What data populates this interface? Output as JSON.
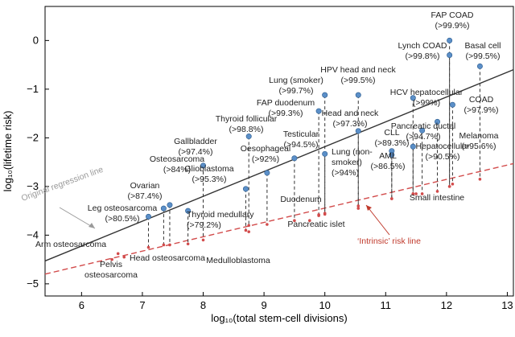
{
  "chart_data": {
    "type": "scatter",
    "title": "",
    "xlabel": "log₁₀(total stem-cell divisions)",
    "ylabel": "log₁₀(lifetime risk)",
    "xlim": [
      5.4,
      13.1
    ],
    "ylim": [
      -5.25,
      0.7
    ],
    "xticks": [
      6,
      7,
      8,
      9,
      10,
      11,
      12,
      13
    ],
    "yticks": [
      0,
      -1,
      -2,
      -3,
      -4,
      -5
    ],
    "grid": false,
    "colors": {
      "high_point": "#5b8fc8",
      "low_point": "#d24b4b",
      "regression_line": "#333333",
      "intrinsic_line": "#d24b4b",
      "original_label": "#9a9a9a",
      "intrinsic_label": "#c0392b",
      "drop_line": "#333333"
    },
    "lines": [
      {
        "name": "regression",
        "style": "solid",
        "x": [
          5.4,
          13.1
        ],
        "y": [
          -4.53,
          -0.6
        ]
      },
      {
        "name": "intrinsic",
        "style": "dashed",
        "x": [
          5.4,
          13.1
        ],
        "y": [
          -4.8,
          -2.53
        ]
      }
    ],
    "points": [
      {
        "label": "FAP COAD\n(>99.9%)",
        "x": 12.05,
        "y_high": 0.0,
        "y_low": -3.0
      },
      {
        "label": "Lynch COAD\n(>99.8%)",
        "x": 12.05,
        "y_high": -0.3,
        "y_low": -3.0
      },
      {
        "label": "Basal cell\n(>99.5%)",
        "x": 12.55,
        "y_high": -0.53,
        "y_low": -2.85
      },
      {
        "label": "HPV head and neck\n(>99.5%)",
        "x": 10.55,
        "y_high": -1.12,
        "y_low": -3.4
      },
      {
        "label": "Lung (smoker)\n(>99.7%)",
        "x": 10.0,
        "y_high": -1.12,
        "y_low": -3.57
      },
      {
        "label": "HCV hepatocellular\n(>99%)",
        "x": 11.45,
        "y_high": -1.18,
        "y_low": -3.15
      },
      {
        "label": "COAD\n(>97.9%)",
        "x": 12.1,
        "y_high": -1.32,
        "y_low": -2.95
      },
      {
        "label": "FAP duodenum\n(>99.3%)",
        "x": 9.9,
        "y_high": -1.45,
        "y_low": -3.6
      },
      {
        "label": "Head and neck\n(>97.3%)",
        "x": 10.55,
        "y_high": -1.86,
        "y_low": -3.45
      },
      {
        "label": "Thyroid follicular\n(>98.8%)",
        "x": 8.75,
        "y_high": -1.97,
        "y_low": -3.8
      },
      {
        "label": "Pancreatic ductal\n(>94.7%)",
        "x": 11.6,
        "y_high": -1.85,
        "y_low": -3.15
      },
      {
        "label": "Melanoma\n(>95.6%)",
        "x": 11.85,
        "y_high": -1.67,
        "y_low": -3.1
      },
      {
        "label": "Hepatocellular\n(>90.5%)",
        "x": 11.45,
        "y_high": -2.18,
        "y_low": -3.15
      },
      {
        "label": "Testicular\n(>94.5%)",
        "x": 9.5,
        "y_high": -2.42,
        "y_low": -3.7
      },
      {
        "label": "Lung (non-\nsmoker)\n(>94%)",
        "x": 10.0,
        "y_high": -2.33,
        "y_low": -3.55
      },
      {
        "label": "Oesophageal\n(>92%)",
        "x": 9.05,
        "y_high": -2.72,
        "y_low": -3.78
      },
      {
        "label": "Gallbladder\n(>97.4%)",
        "x": 8.0,
        "y_high": -2.57,
        "y_low": -4.1
      },
      {
        "label": "CLL\n(>89.3%)",
        "x": 11.1,
        "y_high": -2.27,
        "y_low": -3.25
      },
      {
        "label": "AML\n(>86.5%)",
        "x": 11.1,
        "y_high": -2.35,
        "y_low": -3.25
      },
      {
        "label": "Glioblastoma\n(>95.3%)",
        "x": 8.7,
        "y_high": -3.05,
        "y_low": -3.9
      },
      {
        "label": "Osteosarcoma\n(>84%)",
        "x": 7.45,
        "y_high": -3.38,
        "y_low": -4.2
      },
      {
        "label": "Ovarian\n(>87.4%)",
        "x": 7.35,
        "y_high": -3.45,
        "y_low": -4.2
      },
      {
        "label": "Leg osteosarcoma\n(>80.5%)",
        "x": 7.1,
        "y_high": -3.62,
        "y_low": -4.25
      },
      {
        "label": "Thyroid medullary\n(>79.2%)",
        "x": 7.75,
        "y_high": -3.5,
        "y_low": -4.18
      },
      {
        "label": "Medulloblastoma",
        "x": 8.75,
        "y_high": null,
        "y_low": -3.93
      },
      {
        "label": "Duodenum",
        "x": 9.9,
        "y_high": null,
        "y_low": -3.58
      },
      {
        "label": "Pancreatic islet",
        "x": 9.75,
        "y_high": null,
        "y_low": -3.7
      },
      {
        "label": "Small intestine",
        "x": 11.5,
        "y_high": null,
        "y_low": -3.15
      },
      {
        "label": "Arm osteosarcoma",
        "x": 6.6,
        "y_high": null,
        "y_low": -4.38
      },
      {
        "label": "Head osteosarcoma",
        "x": 6.7,
        "y_high": null,
        "y_low": -4.45
      },
      {
        "label": "Pelvis\nosteosarcoma",
        "x": 6.5,
        "y_high": null,
        "y_low": -4.5
      }
    ],
    "annotations": [
      {
        "text": "Original regression line",
        "x": 5.6,
        "y": -2.9,
        "color": "#9a9a9a",
        "rotation": -20
      },
      {
        "text": "‘Intrinsic’ risk line",
        "x": 11.0,
        "y": -4.13,
        "color": "#c0392b",
        "rotation": 0
      }
    ]
  }
}
